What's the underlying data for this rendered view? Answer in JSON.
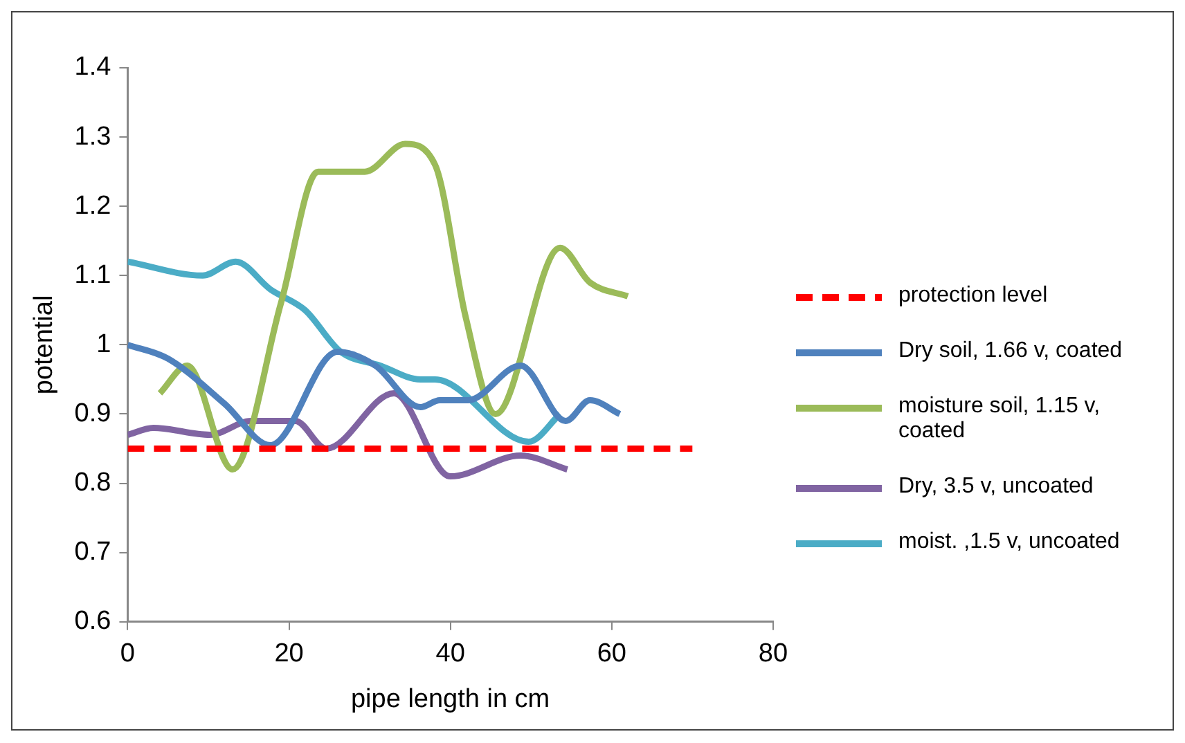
{
  "chart_data": {
    "type": "line",
    "xlabel": "pipe length in cm",
    "ylabel": "potential",
    "xlim": [
      0,
      80
    ],
    "xticks": [
      0,
      20,
      40,
      60,
      80
    ],
    "ylim": [
      0.6,
      1.4
    ],
    "yticks": [
      0.6,
      0.7,
      0.8,
      0.9,
      1,
      1.1,
      1.2,
      1.3,
      1.4
    ],
    "grid": false,
    "legend": "right",
    "marker": "none",
    "series": [
      {
        "name": "protection level",
        "color": "#ff0000",
        "line_style": "dashed",
        "x": [
          0,
          70
        ],
        "values": [
          0.85,
          0.85
        ]
      },
      {
        "name": "Dry soil, 1.66 v, coated",
        "color": "#4f81bd",
        "x": [
          0,
          5,
          12,
          17.7,
          26,
          30.7,
          36.3,
          38.7,
          42.2,
          48.7,
          54.3,
          57.3,
          61
        ],
        "values": [
          1.0,
          0.98,
          0.915,
          0.855,
          0.99,
          0.97,
          0.91,
          0.92,
          0.92,
          0.97,
          0.89,
          0.92,
          0.9
        ]
      },
      {
        "name": "moisture soil, 1.15 v, coated",
        "color": "#9bbb59",
        "x": [
          4,
          7.4,
          13,
          19,
          23.6,
          29.4,
          34.4,
          38.1,
          41.9,
          45.6,
          53.6,
          57.3,
          62
        ],
        "values": [
          0.93,
          0.97,
          0.82,
          1.06,
          1.25,
          1.25,
          1.29,
          1.26,
          1.04,
          0.9,
          1.14,
          1.09,
          1.07
        ]
      },
      {
        "name": "Dry, 3.5 v, uncoated",
        "color": "#8064a2",
        "x": [
          0,
          3.2,
          10.2,
          15.3,
          20.8,
          24.6,
          33,
          40,
          48.7,
          54.5
        ],
        "values": [
          0.87,
          0.88,
          0.87,
          0.89,
          0.89,
          0.85,
          0.93,
          0.81,
          0.84,
          0.82
        ]
      },
      {
        "name": "moist. ,1.5 v, uncoated",
        "color": "#4bacc6",
        "x": [
          0,
          9.3,
          13.4,
          17.7,
          22,
          26.4,
          31.3,
          36.3,
          38.1,
          49.7,
          53.6
        ],
        "values": [
          1.12,
          1.1,
          1.12,
          1.08,
          1.05,
          0.99,
          0.97,
          0.95,
          0.95,
          0.86,
          0.9
        ]
      }
    ]
  }
}
